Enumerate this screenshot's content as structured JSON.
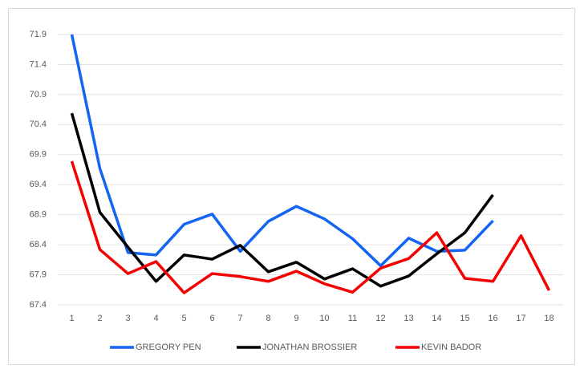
{
  "chart_data": {
    "type": "line",
    "categories": [
      1,
      2,
      3,
      4,
      5,
      6,
      7,
      8,
      9,
      10,
      11,
      12,
      13,
      14,
      15,
      16,
      17,
      18
    ],
    "series": [
      {
        "name": "GREGORY PEN",
        "color": "#1464f4",
        "values": [
          71.9,
          69.67,
          68.27,
          68.23,
          68.74,
          68.91,
          68.29,
          68.79,
          69.04,
          68.83,
          68.5,
          68.05,
          68.51,
          68.29,
          68.31,
          68.8,
          null,
          null
        ]
      },
      {
        "name": "JONATHAN BROSSIER",
        "color": "#000000",
        "values": [
          70.59,
          68.94,
          68.36,
          67.79,
          68.23,
          68.16,
          68.39,
          67.95,
          68.11,
          67.83,
          68.0,
          67.71,
          67.88,
          68.25,
          68.6,
          69.23,
          null,
          null
        ]
      },
      {
        "name": "KEVIN BADOR",
        "color": "#f40000",
        "values": [
          69.79,
          68.32,
          67.92,
          68.12,
          67.6,
          67.92,
          67.87,
          67.79,
          67.96,
          67.75,
          67.61,
          68.01,
          68.17,
          68.6,
          67.84,
          67.79,
          68.55,
          67.64
        ]
      }
    ],
    "ylim": [
      67.4,
      71.9
    ],
    "yticks": [
      67.4,
      67.9,
      68.4,
      68.9,
      69.4,
      69.9,
      70.4,
      70.9,
      71.4,
      71.9
    ],
    "grid": true,
    "legend": "bottom"
  }
}
